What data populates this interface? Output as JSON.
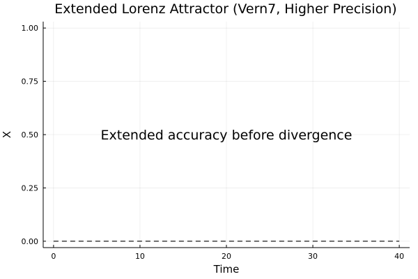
{
  "chart_data": {
    "type": "line",
    "title": "Extended Lorenz Attractor (Vern7, Higher Precision)",
    "xlabel": "Time",
    "ylabel": "X",
    "xlim": [
      -1.2,
      41.2
    ],
    "ylim": [
      -0.03,
      1.03
    ],
    "xticks": [
      0,
      10,
      20,
      30,
      40
    ],
    "xtick_labels": [
      "0",
      "10",
      "20",
      "30",
      "40"
    ],
    "yticks": [
      0,
      0.25,
      0.5,
      0.75,
      1.0
    ],
    "ytick_labels": [
      "0.00",
      "0.25",
      "0.50",
      "0.75",
      "1.00"
    ],
    "grid": true,
    "legend": "none",
    "series": [
      {
        "style": "dashed",
        "color": "#000000",
        "x": [
          0,
          40
        ],
        "y": [
          0,
          0
        ]
      }
    ],
    "annotations": [
      {
        "text": "Extended accuracy before divergence",
        "x": 20,
        "y": 0.5
      }
    ]
  }
}
